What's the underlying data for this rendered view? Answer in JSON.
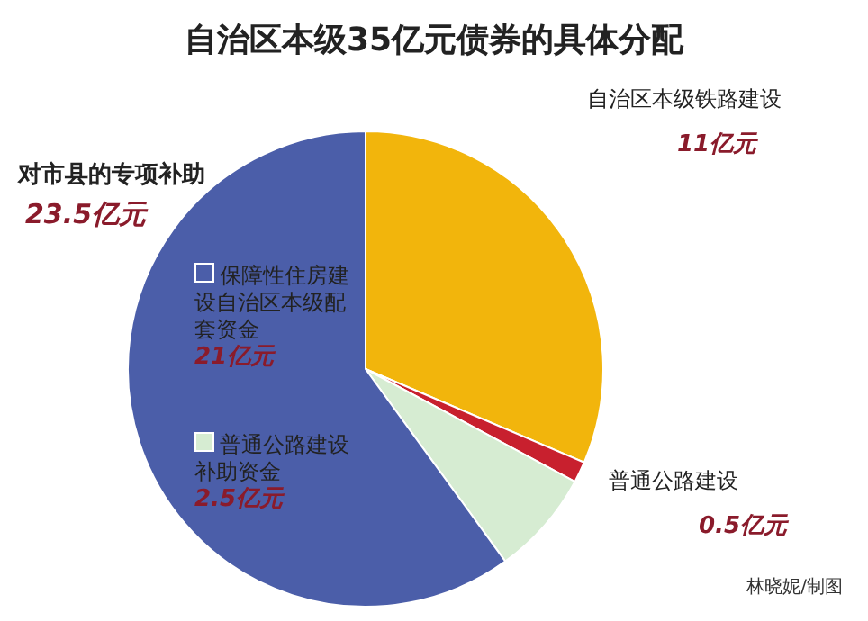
{
  "chart_data": {
    "type": "pie",
    "title": "自治区本级35亿元债券的具体分配",
    "categories": [
      "自治区本级铁路建设",
      "普通公路建设",
      "普通公路建设补助资金",
      "保障性住房建设自治区本级配套资金"
    ],
    "values": [
      11,
      0.5,
      2.5,
      21
    ],
    "colors": [
      "#f2b50c",
      "#c8202e",
      "#d6ecd2",
      "#4b5ea9"
    ],
    "value_labels": [
      "11亿元",
      "0.5亿元",
      "2.5亿元",
      "21亿元"
    ],
    "legend": "left",
    "annotations": [
      "对市县的专项补助",
      "23.5亿元",
      "林晓妮/制图"
    ]
  }
}
